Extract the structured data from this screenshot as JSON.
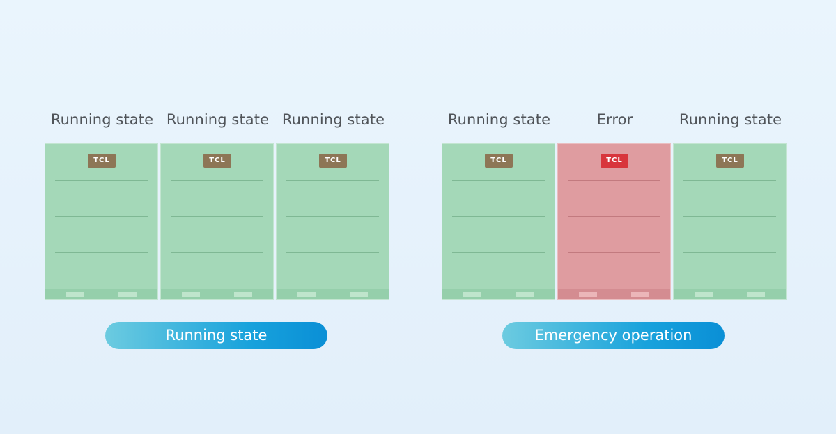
{
  "groups": [
    {
      "units": [
        {
          "label": "Running state",
          "badge": "TCL",
          "status": "ok"
        },
        {
          "label": "Running state",
          "badge": "TCL",
          "status": "ok"
        },
        {
          "label": "Running state",
          "badge": "TCL",
          "status": "ok"
        }
      ],
      "mode_label": "Running state"
    },
    {
      "units": [
        {
          "label": "Running state",
          "badge": "TCL",
          "status": "ok"
        },
        {
          "label": "Error",
          "badge": "TCL",
          "status": "error"
        },
        {
          "label": "Running state",
          "badge": "TCL",
          "status": "ok"
        }
      ],
      "mode_label": "Emergency operation"
    }
  ],
  "colors": {
    "unit_ok": "#a4d8b8",
    "unit_error": "#df9ca0",
    "badge_ok": "#8d7656",
    "badge_error": "#d8353c",
    "pill_start": "#6ccbe0",
    "pill_end": "#0a8fd6"
  }
}
